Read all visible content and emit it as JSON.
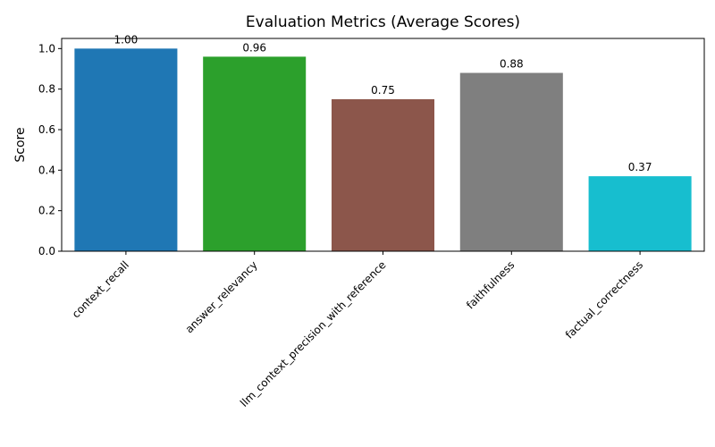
{
  "chart_data": {
    "type": "bar",
    "title": "Evaluation Metrics (Average Scores)",
    "xlabel": "",
    "ylabel": "Score",
    "categories": [
      "context_recall",
      "answer_relevancy",
      "llm_context_precision_with_reference",
      "faithfulness",
      "factual_correctness"
    ],
    "values": [
      1.0,
      0.96,
      0.75,
      0.88,
      0.37
    ],
    "value_labels": [
      "1.00",
      "0.96",
      "0.75",
      "0.88",
      "0.37"
    ],
    "colors": [
      "#1f77b4",
      "#2ca02c",
      "#8c564b",
      "#7f7f7f",
      "#17becf"
    ],
    "ylim": [
      0,
      1.05
    ],
    "yticks": [
      0.0,
      0.2,
      0.4,
      0.6,
      0.8,
      1.0
    ],
    "ytick_labels": [
      "0.0",
      "0.2",
      "0.4",
      "0.6",
      "0.8",
      "1.0"
    ],
    "grid": false,
    "legend": false
  }
}
